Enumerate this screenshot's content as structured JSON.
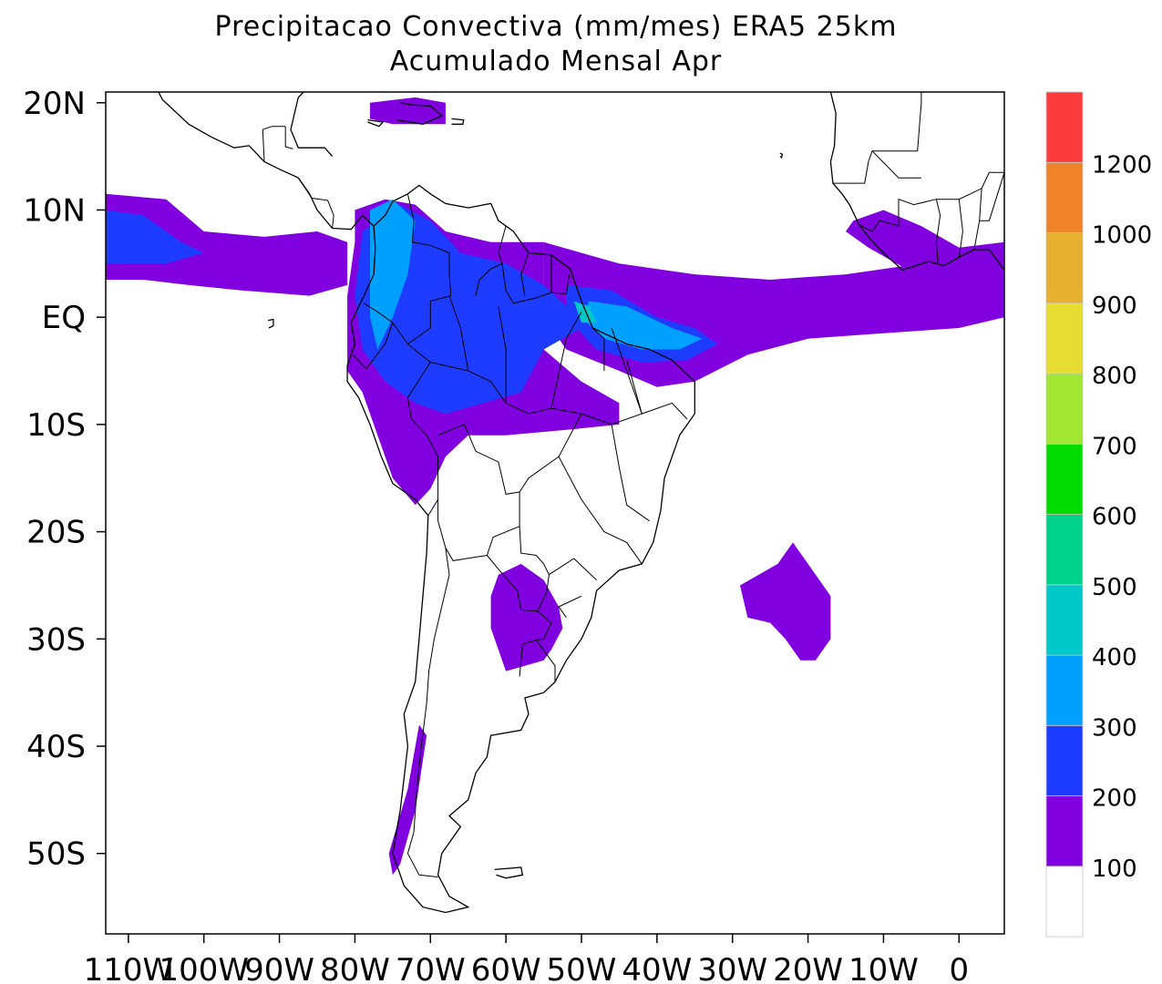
{
  "title": {
    "line1": "Precipitacao Convectiva (mm/mes) ERA5  25km",
    "line2": "Acumulado Mensal Apr"
  },
  "map": {
    "projection": "lat-lon",
    "lon_range": [
      -113,
      6
    ],
    "lat_range": [
      -57.5,
      21
    ],
    "lat_ticks": [
      {
        "label": "20N",
        "value": 20
      },
      {
        "label": "10N",
        "value": 10
      },
      {
        "label": "EQ",
        "value": 0
      },
      {
        "label": "10S",
        "value": -10
      },
      {
        "label": "20S",
        "value": -20
      },
      {
        "label": "30S",
        "value": -30
      },
      {
        "label": "40S",
        "value": -40
      },
      {
        "label": "50S",
        "value": -50
      }
    ],
    "lon_ticks": [
      {
        "label": "110W",
        "value": -110
      },
      {
        "label": "100W",
        "value": -100
      },
      {
        "label": "90W",
        "value": -90
      },
      {
        "label": "80W",
        "value": -80
      },
      {
        "label": "70W",
        "value": -70
      },
      {
        "label": "60W",
        "value": -60
      },
      {
        "label": "50W",
        "value": -50
      },
      {
        "label": "40W",
        "value": -40
      },
      {
        "label": "30W",
        "value": -30
      },
      {
        "label": "20W",
        "value": -20
      },
      {
        "label": "10W",
        "value": -10
      },
      {
        "label": "0",
        "value": 0
      }
    ]
  },
  "colorbar": {
    "labels": [
      "100",
      "200",
      "300",
      "400",
      "500",
      "600",
      "700",
      "800",
      "900",
      "1000",
      "1200"
    ],
    "colors": [
      "#ffffff",
      "#8000e0",
      "#1e3cff",
      "#00a0ff",
      "#00c8c8",
      "#00d28c",
      "#00dc00",
      "#a0e632",
      "#e6dc32",
      "#e6af2d",
      "#f08228",
      "#fa3c3c"
    ]
  },
  "precip_regions": [
    {
      "id": "itcz-pacific",
      "level": 1,
      "coords": [
        [
          -113,
          11.5
        ],
        [
          -105,
          11
        ],
        [
          -100,
          8
        ],
        [
          -92,
          7.5
        ],
        [
          -85,
          8
        ],
        [
          -81,
          7
        ],
        [
          -81,
          3
        ],
        [
          -86,
          2
        ],
        [
          -95,
          2.5
        ],
        [
          -102,
          3
        ],
        [
          -108,
          3.5
        ],
        [
          -113,
          3.5
        ]
      ]
    },
    {
      "id": "itcz-atlantic",
      "level": 1,
      "coords": [
        [
          -55,
          7
        ],
        [
          -45,
          5
        ],
        [
          -35,
          4
        ],
        [
          -25,
          3.5
        ],
        [
          -15,
          4
        ],
        [
          -5,
          5
        ],
        [
          1,
          6
        ],
        [
          6,
          5.5
        ],
        [
          6,
          0
        ],
        [
          0,
          -1
        ],
        [
          -10,
          -1.5
        ],
        [
          -20,
          -2
        ],
        [
          -28,
          -3.5
        ],
        [
          -35,
          -6
        ],
        [
          -40,
          -6.5
        ],
        [
          -45,
          -5
        ],
        [
          -52,
          -3
        ],
        [
          -55,
          0
        ]
      ]
    },
    {
      "id": "amazon-basin",
      "level": 1,
      "coords": [
        [
          -80,
          10
        ],
        [
          -76,
          11
        ],
        [
          -72,
          10.5
        ],
        [
          -68,
          8
        ],
        [
          -62,
          7
        ],
        [
          -55,
          7
        ],
        [
          -55,
          -3
        ],
        [
          -50,
          -6
        ],
        [
          -45,
          -8
        ],
        [
          -45,
          -10
        ],
        [
          -52,
          -10.5
        ],
        [
          -60,
          -11
        ],
        [
          -65,
          -11
        ],
        [
          -68,
          -13
        ],
        [
          -70,
          -16
        ],
        [
          -72,
          -17.5
        ],
        [
          -75,
          -15
        ],
        [
          -77,
          -11
        ],
        [
          -79,
          -7
        ],
        [
          -81,
          -5
        ],
        [
          -81,
          2
        ],
        [
          -80,
          7
        ]
      ]
    },
    {
      "id": "gulf-guinea",
      "level": 1,
      "coords": [
        [
          -14,
          9
        ],
        [
          -10,
          10
        ],
        [
          -5,
          8.5
        ],
        [
          0,
          6.5
        ],
        [
          6,
          7
        ],
        [
          6,
          5
        ],
        [
          0,
          4.5
        ],
        [
          -7,
          4.5
        ],
        [
          -12,
          6.5
        ],
        [
          -15,
          8
        ]
      ]
    },
    {
      "id": "caribbean",
      "level": 1,
      "coords": [
        [
          -78,
          20
        ],
        [
          -72,
          20.5
        ],
        [
          -68,
          20
        ],
        [
          -68,
          18
        ],
        [
          -75,
          18
        ],
        [
          -78,
          18.5
        ]
      ]
    },
    {
      "id": "la-plata",
      "level": 1,
      "coords": [
        [
          -61,
          -24
        ],
        [
          -58,
          -23
        ],
        [
          -55,
          -24.5
        ],
        [
          -53,
          -27
        ],
        [
          -52.5,
          -29
        ],
        [
          -54,
          -31
        ],
        [
          -55,
          -32
        ],
        [
          -57.5,
          -32.5
        ],
        [
          -60,
          -33
        ],
        [
          -61,
          -31
        ],
        [
          -62,
          -29
        ],
        [
          -62,
          -26
        ]
      ]
    },
    {
      "id": "south-atlantic",
      "level": 1,
      "coords": [
        [
          -29,
          -25
        ],
        [
          -24,
          -23
        ],
        [
          -22,
          -21
        ],
        [
          -19,
          -24
        ],
        [
          -17,
          -26
        ],
        [
          -17,
          -30
        ],
        [
          -19,
          -32
        ],
        [
          -21,
          -32
        ],
        [
          -23,
          -30
        ],
        [
          -25,
          -28.5
        ],
        [
          -28,
          -28
        ]
      ]
    },
    {
      "id": "chile-coast",
      "level": 1,
      "coords": [
        [
          -73,
          -44
        ],
        [
          -71.5,
          -38
        ],
        [
          -70.5,
          -39
        ],
        [
          -72,
          -46
        ],
        [
          -74,
          -51
        ],
        [
          -75,
          -52
        ],
        [
          -75.5,
          -50
        ]
      ]
    },
    {
      "id": "equator-core",
      "level": 2,
      "coords": [
        [
          -79,
          8
        ],
        [
          -74,
          10.5
        ],
        [
          -70,
          9
        ],
        [
          -66,
          6
        ],
        [
          -60,
          5
        ],
        [
          -55,
          3
        ],
        [
          -52,
          1
        ],
        [
          -50,
          -1
        ],
        [
          -55,
          -3
        ],
        [
          -58,
          -7
        ],
        [
          -63,
          -8
        ],
        [
          -68,
          -9
        ],
        [
          -72,
          -8
        ],
        [
          -76,
          -6
        ],
        [
          -79,
          -3
        ],
        [
          -80,
          2
        ]
      ]
    },
    {
      "id": "pacific-core",
      "level": 2,
      "coords": [
        [
          -113,
          10
        ],
        [
          -108,
          9.5
        ],
        [
          -103,
          7
        ],
        [
          -100,
          6
        ],
        [
          -105,
          5
        ],
        [
          -113,
          5
        ]
      ]
    },
    {
      "id": "atlantic-core",
      "level": 2,
      "coords": [
        [
          -52,
          3
        ],
        [
          -46,
          2.5
        ],
        [
          -40,
          0
        ],
        [
          -35,
          -1
        ],
        [
          -32,
          -2.5
        ],
        [
          -36,
          -4
        ],
        [
          -42,
          -4.2
        ],
        [
          -48,
          -3
        ],
        [
          -52,
          0
        ]
      ]
    },
    {
      "id": "atlantic-peak",
      "level": 3,
      "coords": [
        [
          -49,
          1.5
        ],
        [
          -44,
          1
        ],
        [
          -38,
          -1
        ],
        [
          -34,
          -2
        ],
        [
          -37,
          -3
        ],
        [
          -42,
          -3
        ],
        [
          -47,
          -2
        ],
        [
          -50,
          0
        ]
      ]
    },
    {
      "id": "andes-peak",
      "level": 3,
      "coords": [
        [
          -78,
          10
        ],
        [
          -75,
          11
        ],
        [
          -72,
          9
        ],
        [
          -73,
          4
        ],
        [
          -75,
          0
        ],
        [
          -77,
          -3
        ],
        [
          -78,
          0
        ]
      ]
    },
    {
      "id": "amapa-peak",
      "level": 4,
      "coords": [
        [
          -51,
          1.5
        ],
        [
          -49,
          1
        ],
        [
          -48,
          -0.5
        ],
        [
          -50,
          -0.5
        ]
      ]
    }
  ]
}
